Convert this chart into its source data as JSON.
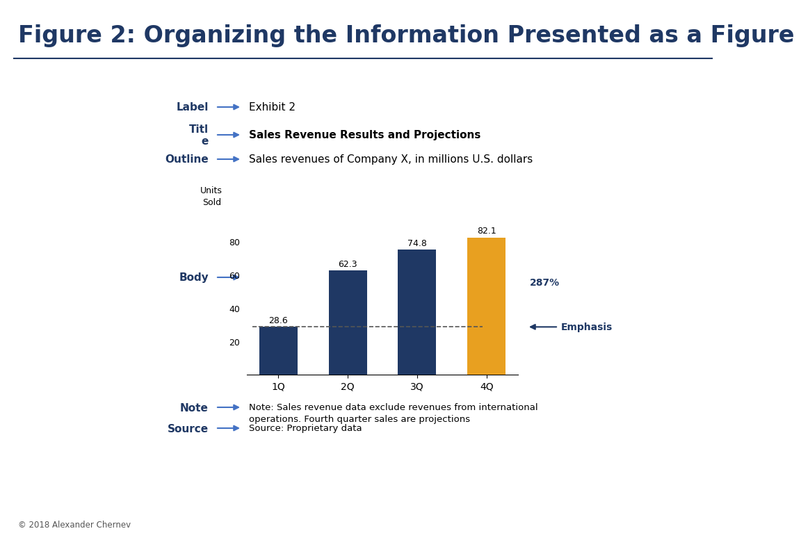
{
  "title": "Figure 2: Organizing the Information Presented as a Figure",
  "title_color": "#1f3864",
  "title_fontsize": 24,
  "background_color": "#ffffff",
  "bar_categories": [
    "1Q",
    "2Q",
    "3Q",
    "4Q"
  ],
  "bar_values": [
    28.6,
    62.3,
    74.8,
    82.1
  ],
  "bar_colors": [
    "#1f3864",
    "#1f3864",
    "#1f3864",
    "#e8a020"
  ],
  "bar_value_labels": [
    "28.6",
    "62.3",
    "74.8",
    "82.1"
  ],
  "ylabel_line1": "Units",
  "ylabel_line2": "Sold",
  "ylim": [
    0,
    100
  ],
  "yticks": [
    20,
    40,
    60,
    80
  ],
  "dashed_line_y": 28.6,
  "emphasis_text": "Emphasis",
  "pct_text": "287%",
  "exhibit_label": "Exhibit 2",
  "chart_title": "Sales Revenue Results and Projections",
  "chart_outline": "Sales revenues of Company X, in millions U.S. dollars",
  "note_text": "Note: Sales revenue data exclude revenues from international\noperations. Fourth quarter sales are projections",
  "source_text": "Source: Proprietary data",
  "copyright_text": "© 2018 Alexander Chernev",
  "dark_navy": "#1f3864",
  "arrow_color": "#4472c4",
  "label_rows": [
    {
      "left_label": "Label",
      "left_bold": true,
      "content": "Exhibit 2",
      "content_bold": false
    },
    {
      "left_label": "Titl\ne",
      "left_bold": true,
      "content": "Sales Revenue Results and Projections",
      "content_bold": true
    },
    {
      "left_label": "Outline",
      "left_bold": true,
      "content": "Sales revenues of Company X, in millions U.S. dollars",
      "content_bold": false
    }
  ],
  "bottom_rows": [
    {
      "left_label": "Note",
      "left_bold": true,
      "content": "Note: Sales revenue data exclude revenues from international\noperations. Fourth quarter sales are projections",
      "content_bold": false
    },
    {
      "left_label": "Source",
      "left_bold": true,
      "content": "Source: Proprietary data",
      "content_bold": false
    }
  ]
}
